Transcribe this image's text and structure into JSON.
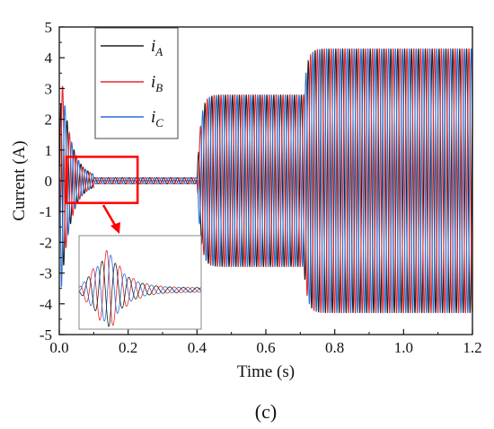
{
  "chart_data": {
    "type": "line",
    "xlabel": "Time (s)",
    "ylabel": "Current (A)",
    "xlim": [
      0.0,
      1.2
    ],
    "ylim": [
      -5,
      5
    ],
    "xticks": [
      "0.0",
      "0.2",
      "0.4",
      "0.6",
      "0.8",
      "1.0",
      "1.2"
    ],
    "yticks": [
      "5",
      "4",
      "3",
      "2",
      "1",
      "0",
      "-1",
      "-2",
      "-3",
      "-4",
      "-5"
    ],
    "grid": false,
    "legend_position": "top-left",
    "series": [
      {
        "name": "i",
        "subscript": "A",
        "color": "#222222"
      },
      {
        "name": "i",
        "subscript": "B",
        "color": "#e8262b"
      },
      {
        "name": "i",
        "subscript": "C",
        "color": "#2a6fd6"
      }
    ],
    "segments": [
      {
        "t_start": 0.0,
        "t_end": 0.1,
        "description": "startup transient",
        "peak_amplitude": 4.3
      },
      {
        "t_start": 0.1,
        "t_end": 0.4,
        "amplitude": 0.1
      },
      {
        "t_start": 0.4,
        "t_end": 0.71,
        "amplitude": 2.8
      },
      {
        "t_start": 0.71,
        "t_end": 1.2,
        "amplitude": 4.3
      }
    ],
    "zoom_window": {
      "x": [
        0.0,
        0.23
      ],
      "y": [
        -0.75,
        0.75
      ]
    },
    "highlight_color": "#ff0000",
    "panel_label": "(c)"
  }
}
